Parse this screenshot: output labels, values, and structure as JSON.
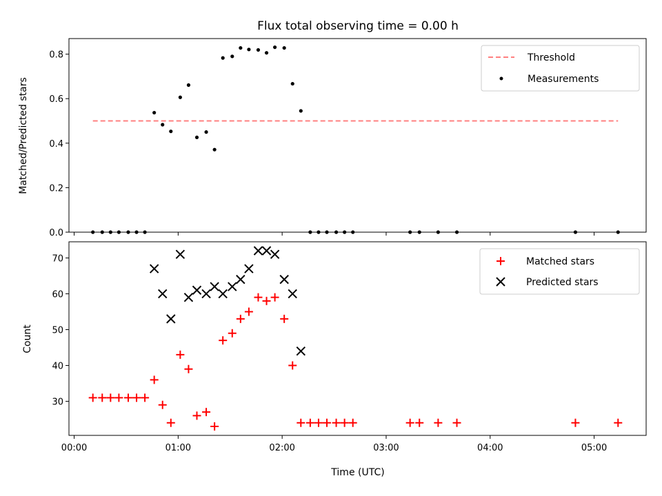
{
  "chart_data": [
    {
      "type": "scatter",
      "title": "Flux total observing time = 0.00 h",
      "xlabel": "",
      "ylabel": "Matched/Predicted stars",
      "xlim": [
        -0.05,
        5.5
      ],
      "ylim": [
        0,
        0.87
      ],
      "x_units": "hours UTC",
      "yticks": [
        0.0,
        0.2,
        0.4,
        0.6,
        0.8
      ],
      "ytick_labels": [
        "0.0",
        "0.2",
        "0.4",
        "0.6",
        "0.8"
      ],
      "xticks": [
        0,
        1,
        2,
        3,
        4,
        5
      ],
      "legend": "top-right",
      "threshold": {
        "name": "Threshold",
        "value": 0.5,
        "x_range": [
          0.18,
          5.23
        ],
        "color": "#ff7f7f",
        "style": "dashed"
      },
      "series": [
        {
          "name": "Measurements",
          "color": "#000000",
          "marker": "dot",
          "x": [
            0.18,
            0.27,
            0.35,
            0.43,
            0.52,
            0.6,
            0.68,
            0.77,
            0.85,
            0.93,
            1.02,
            1.1,
            1.18,
            1.27,
            1.35,
            1.43,
            1.52,
            1.6,
            1.68,
            1.77,
            1.85,
            1.93,
            2.02,
            2.1,
            2.18,
            2.27,
            2.35,
            2.43,
            2.52,
            2.6,
            2.68,
            3.23,
            3.32,
            3.5,
            3.68,
            4.82,
            5.23
          ],
          "y": [
            0,
            0,
            0,
            0,
            0,
            0,
            0,
            0.537,
            0.483,
            0.453,
            0.606,
            0.661,
            0.426,
            0.45,
            0.371,
            0.783,
            0.79,
            0.828,
            0.821,
            0.819,
            0.806,
            0.831,
            0.828,
            0.667,
            0.545,
            0,
            0,
            0,
            0,
            0,
            0,
            0,
            0,
            0,
            0,
            0,
            0
          ]
        }
      ]
    },
    {
      "type": "scatter",
      "title": "",
      "xlabel": "Time (UTC)",
      "ylabel": "Count",
      "xlim": [
        -0.05,
        5.5
      ],
      "ylim": [
        20.5,
        74.5
      ],
      "x_units": "hours UTC",
      "yticks": [
        30,
        40,
        50,
        60,
        70
      ],
      "ytick_labels": [
        "30",
        "40",
        "50",
        "60",
        "70"
      ],
      "xticks": [
        0,
        1,
        2,
        3,
        4,
        5
      ],
      "xtick_labels": [
        "00:00",
        "01:00",
        "02:00",
        "03:00",
        "04:00",
        "05:00"
      ],
      "legend": "top-right",
      "series": [
        {
          "name": "Matched stars",
          "color": "#ff0000",
          "marker": "plus",
          "x": [
            0.18,
            0.27,
            0.35,
            0.43,
            0.52,
            0.6,
            0.68,
            0.77,
            0.85,
            0.93,
            1.02,
            1.1,
            1.18,
            1.27,
            1.35,
            1.43,
            1.52,
            1.6,
            1.68,
            1.77,
            1.85,
            1.93,
            2.02,
            2.1,
            2.18,
            2.27,
            2.35,
            2.43,
            2.52,
            2.6,
            2.68,
            3.23,
            3.32,
            3.5,
            3.68,
            4.82,
            5.23
          ],
          "y": [
            31,
            31,
            31,
            31,
            31,
            31,
            31,
            36,
            29,
            24,
            43,
            39,
            26,
            27,
            23,
            47,
            49,
            53,
            55,
            59,
            58,
            59,
            53,
            40,
            24,
            24,
            24,
            24,
            24,
            24,
            24,
            24,
            24,
            24,
            24,
            24,
            24
          ]
        },
        {
          "name": "Predicted stars",
          "color": "#000000",
          "marker": "x",
          "x": [
            0.77,
            0.85,
            0.93,
            1.02,
            1.1,
            1.18,
            1.27,
            1.35,
            1.43,
            1.52,
            1.6,
            1.68,
            1.77,
            1.85,
            1.93,
            2.02,
            2.1,
            2.18
          ],
          "y": [
            67,
            60,
            53,
            71,
            59,
            61,
            60,
            62,
            60,
            62,
            64,
            67,
            72,
            72,
            71,
            64,
            60,
            44
          ]
        }
      ]
    }
  ]
}
